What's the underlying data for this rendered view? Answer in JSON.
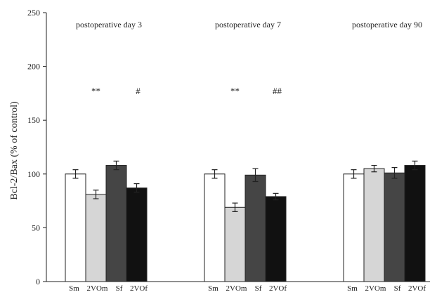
{
  "chart_data": {
    "type": "bar",
    "ylabel": "Bcl-2/Bax (% of control)",
    "ylim": [
      0,
      250
    ],
    "yticks": [
      0,
      50,
      100,
      150,
      200,
      250
    ],
    "grid": false,
    "category_labels": [
      "Sm",
      "2VOm",
      "Sf",
      "2VOf"
    ],
    "series_colors": [
      "#ffffff",
      "#d6d6d6",
      "#454545",
      "#111111"
    ],
    "groups": [
      {
        "title": "postoperative day 3",
        "values": [
          100,
          81,
          108,
          87
        ],
        "errors": [
          4,
          4,
          4,
          4
        ],
        "annotations": [
          {
            "text": "**",
            "bar": 1,
            "y": 180
          },
          {
            "text": "#",
            "bar": 3,
            "y": 180
          }
        ]
      },
      {
        "title": "postoperative day 7",
        "values": [
          100,
          69,
          99,
          79
        ],
        "errors": [
          4,
          4,
          6,
          3
        ],
        "annotations": [
          {
            "text": "**",
            "bar": 1,
            "y": 180
          },
          {
            "text": "##",
            "bar": 3,
            "y": 180
          }
        ]
      },
      {
        "title": "postoperative day 90",
        "values": [
          100,
          105,
          101,
          108
        ],
        "errors": [
          4,
          3,
          5,
          4
        ],
        "annotations": []
      }
    ]
  }
}
